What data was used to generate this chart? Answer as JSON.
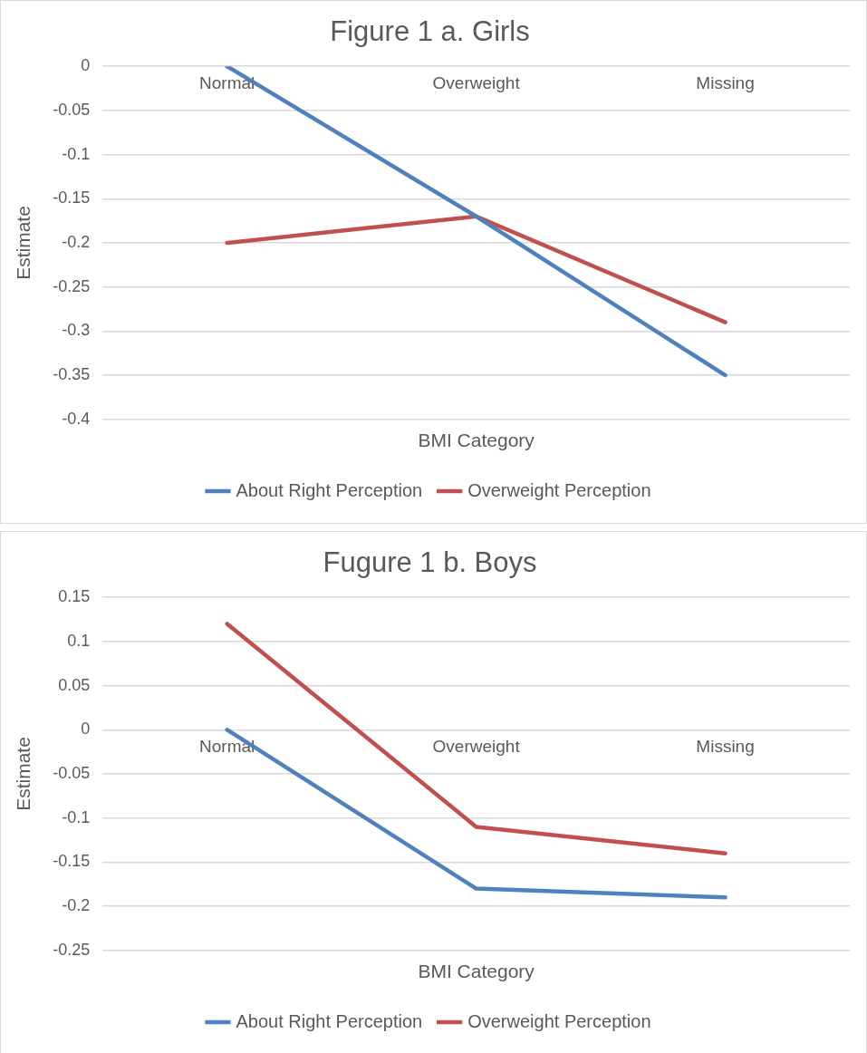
{
  "chart_data": [
    {
      "type": "line",
      "title": "Figure 1 a. Girls",
      "xlabel": "BMI Category",
      "ylabel": "Estimate",
      "categories": [
        "Normal",
        "Overweight",
        "Missing"
      ],
      "series": [
        {
          "name": "About Right Perception",
          "color": "#4f81bd",
          "values": [
            0,
            -0.17,
            -0.35
          ]
        },
        {
          "name": "Overweight Perception",
          "color": "#c0504d",
          "values": [
            -0.2,
            -0.17,
            -0.29
          ]
        }
      ],
      "ylim": [
        -0.4,
        0
      ],
      "yticks": [
        -0.4,
        -0.35,
        -0.3,
        -0.25,
        -0.2,
        -0.15,
        -0.1,
        -0.05,
        0
      ],
      "grid": "y",
      "legend": "bottom",
      "marker": "none",
      "line_style": "solid"
    },
    {
      "type": "line",
      "title": "Fugure 1 b. Boys",
      "xlabel": "BMI Category",
      "ylabel": "Estimate",
      "categories": [
        "Normal",
        "Overweight",
        "Missing"
      ],
      "series": [
        {
          "name": "About Right Perception",
          "color": "#4f81bd",
          "values": [
            0,
            -0.18,
            -0.19
          ]
        },
        {
          "name": "Overweight Perception",
          "color": "#c0504d",
          "values": [
            0.12,
            -0.11,
            -0.14
          ]
        }
      ],
      "ylim": [
        -0.25,
        0.15
      ],
      "yticks": [
        -0.25,
        -0.2,
        -0.15,
        -0.1,
        -0.05,
        0,
        0.05,
        0.1,
        0.15
      ],
      "grid": "y",
      "legend": "bottom",
      "marker": "none",
      "line_style": "solid"
    }
  ]
}
